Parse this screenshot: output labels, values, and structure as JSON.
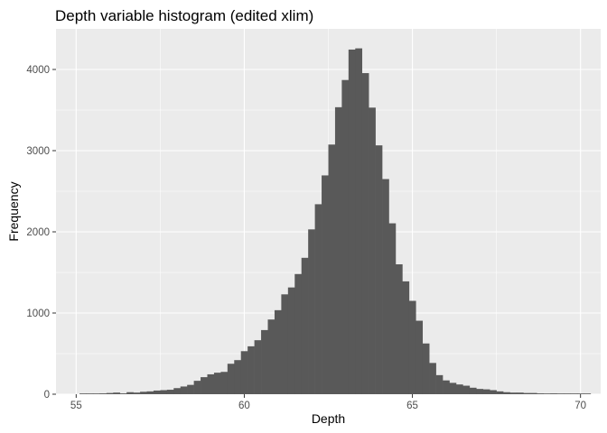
{
  "chart_data": {
    "type": "bar",
    "title": "Depth variable histogram (edited xlim)",
    "xlabel": "Depth",
    "ylabel": "Frequency",
    "xlim": [
      54.4,
      70.6
    ],
    "ylim": [
      0,
      4500
    ],
    "x_ticks": [
      55,
      60,
      65,
      70
    ],
    "x_tick_labels": [
      "55",
      "60",
      "65",
      "70"
    ],
    "y_ticks": [
      0,
      1000,
      2000,
      3000,
      4000
    ],
    "y_tick_labels": [
      "0",
      "1000",
      "2000",
      "3000",
      "4000"
    ],
    "grid": true,
    "bar_color": "#595959",
    "panel_color": "#ebebeb",
    "bin_width": 0.2,
    "bin_start": 55.1,
    "values": [
      5,
      5,
      5,
      10,
      15,
      20,
      10,
      25,
      20,
      30,
      35,
      45,
      50,
      55,
      75,
      95,
      115,
      165,
      210,
      245,
      265,
      275,
      375,
      420,
      530,
      590,
      665,
      790,
      920,
      1035,
      1230,
      1315,
      1480,
      1680,
      2030,
      2340,
      2695,
      3075,
      3535,
      3870,
      4245,
      4260,
      3955,
      3530,
      3065,
      2650,
      2105,
      1600,
      1390,
      1150,
      905,
      625,
      385,
      235,
      170,
      140,
      120,
      105,
      80,
      65,
      60,
      50,
      35,
      25,
      20,
      20,
      15,
      15,
      10,
      8,
      10,
      5,
      5,
      5,
      5,
      5
    ]
  }
}
